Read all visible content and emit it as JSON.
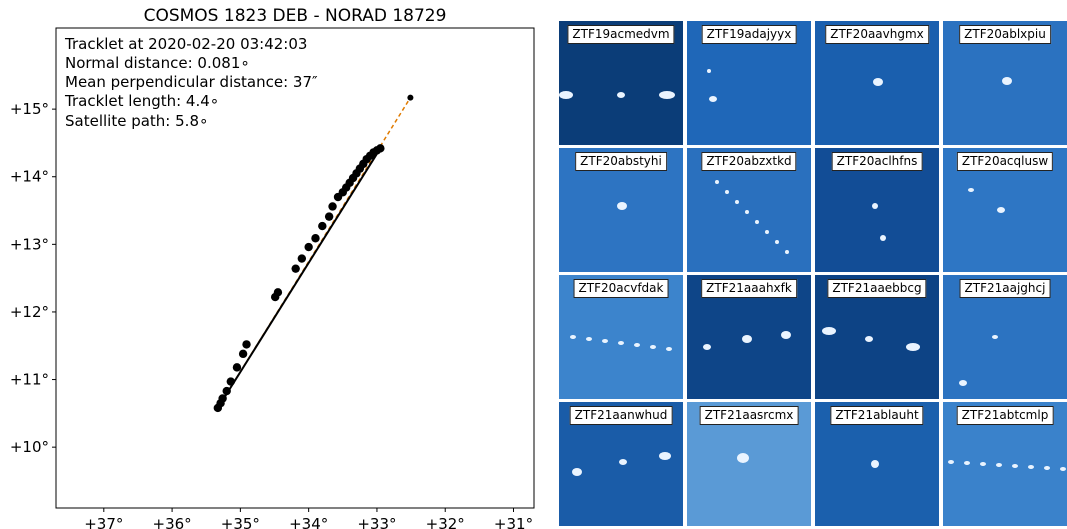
{
  "chart_data": {
    "type": "scatter",
    "title": "COSMOS 1823 DEB - NORAD 18729",
    "annotations": [
      "Tracklet at 2020-02-20 03:42:03",
      "Normal distance: 0.081∘",
      "Mean perpendicular distance: 37″",
      "Tracklet length: 4.4∘",
      "Satellite path: 5.8∘"
    ],
    "xlabel": "",
    "ylabel": "",
    "xlim": [
      37.7,
      30.7
    ],
    "ylim": [
      9.1,
      16.2
    ],
    "x_inverted": true,
    "x_ticks": [
      {
        "value": 37,
        "label": "+37°"
      },
      {
        "value": 36,
        "label": "+36°"
      },
      {
        "value": 35,
        "label": "+35°"
      },
      {
        "value": 34,
        "label": "+34°"
      },
      {
        "value": 33,
        "label": "+33°"
      },
      {
        "value": 32,
        "label": "+32°"
      },
      {
        "value": 31,
        "label": "+31°"
      }
    ],
    "y_ticks": [
      {
        "value": 15,
        "label": "+15°"
      },
      {
        "value": 14,
        "label": "+14°"
      },
      {
        "value": 13,
        "label": "+13°"
      },
      {
        "value": 12,
        "label": "+12°"
      },
      {
        "value": 11,
        "label": "+11°"
      },
      {
        "value": 10,
        "label": "+10°"
      }
    ],
    "grid": false,
    "satellite_path": {
      "x": [
        35.33,
        32.51
      ],
      "y": [
        10.58,
        15.17
      ],
      "color": "#e07b00",
      "style": "dashed"
    },
    "tracklet_line": {
      "x": [
        35.33,
        32.95
      ],
      "y": [
        10.58,
        14.42
      ],
      "color": "#000000"
    },
    "end_marker": {
      "x": 32.51,
      "y": 15.17
    },
    "points": {
      "x": [
        35.33,
        35.29,
        35.26,
        35.2,
        35.14,
        35.05,
        34.96,
        34.91,
        34.49,
        34.45,
        34.19,
        34.1,
        34.0,
        33.9,
        33.8,
        33.7,
        33.65,
        33.57,
        33.5,
        33.45,
        33.4,
        33.35,
        33.3,
        33.25,
        33.2,
        33.15,
        33.1,
        33.05,
        33.0,
        32.95
      ],
      "y": [
        10.58,
        10.65,
        10.72,
        10.83,
        10.97,
        11.18,
        11.38,
        11.52,
        12.22,
        12.29,
        12.64,
        12.79,
        12.96,
        13.09,
        13.27,
        13.41,
        13.56,
        13.7,
        13.77,
        13.84,
        13.91,
        13.98,
        14.05,
        14.12,
        14.19,
        14.26,
        14.31,
        14.36,
        14.39,
        14.42
      ],
      "color": "#000000"
    }
  },
  "cutouts": [
    {
      "label": "ZTF19acmedvm",
      "bg": "#0b3d78"
    },
    {
      "label": "ZTF19adajyyx",
      "bg": "#1f67b8"
    },
    {
      "label": "ZTF20aavhgmx",
      "bg": "#1a5fae"
    },
    {
      "label": "ZTF20ablxpiu",
      "bg": "#2b72c0"
    },
    {
      "label": "ZTF20abstyhi",
      "bg": "#2d74c2"
    },
    {
      "label": "ZTF20abzxtkd",
      "bg": "#2a70be"
    },
    {
      "label": "ZTF20aclhfns",
      "bg": "#124d96"
    },
    {
      "label": "ZTF20acqlusw",
      "bg": "#2e76c4"
    },
    {
      "label": "ZTF20acvfdak",
      "bg": "#3c84cc"
    },
    {
      "label": "ZTF21aaahxfk",
      "bg": "#0e4588"
    },
    {
      "label": "ZTF21aaebbcg",
      "bg": "#0d4385"
    },
    {
      "label": "ZTF21aajghcj",
      "bg": "#2c73c1"
    },
    {
      "label": "ZTF21aanwhud",
      "bg": "#1a5ca8"
    },
    {
      "label": "ZTF21aasrcmx",
      "bg": "#5a9ad6"
    },
    {
      "label": "ZTF21ablauht",
      "bg": "#1b60ad"
    },
    {
      "label": "ZTF21abtcmlp",
      "bg": "#3a82cb"
    }
  ]
}
